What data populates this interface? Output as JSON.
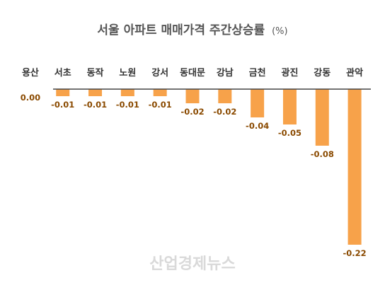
{
  "chart_data": {
    "type": "bar",
    "title": "서울 아파트 매매가격 주간상승률",
    "unit": "(%)",
    "categories": [
      "용산",
      "서초",
      "동작",
      "노원",
      "강서",
      "동대문",
      "강남",
      "금천",
      "광진",
      "강동",
      "관악"
    ],
    "values": [
      0.0,
      -0.01,
      -0.01,
      -0.01,
      -0.01,
      -0.02,
      -0.02,
      -0.04,
      -0.05,
      -0.08,
      -0.22
    ],
    "value_labels": [
      "0.00",
      "-0.01",
      "-0.01",
      "-0.01",
      "-0.01",
      "-0.02",
      "-0.02",
      "-0.04",
      "-0.05",
      "-0.08",
      "-0.22"
    ],
    "ylim": [
      -0.22,
      0
    ],
    "grid": false,
    "colors": {
      "bar": "#f7a24a",
      "axis": "#444444",
      "value_label": "#8a4a00"
    }
  },
  "watermark": "산업경제뉴스"
}
